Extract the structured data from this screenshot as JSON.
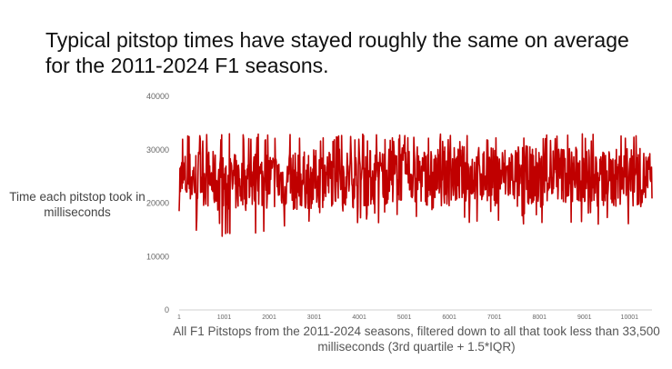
{
  "chart_data": {
    "type": "line",
    "title": "Typical pitstop times have stayed roughly the same on average for the 2011-2024 F1 seasons.",
    "ylabel": "Time each pitstop took in milliseconds",
    "xlabel": "All F1 Pitstops from the 2011-2024 seasons, filtered down to all that took less than 33,500 milliseconds (3rd quartile + 1.5*IQR)",
    "xlim": [
      1,
      10500
    ],
    "ylim": [
      0,
      40000
    ],
    "y_ticks": [
      0,
      10000,
      20000,
      30000,
      40000
    ],
    "y_tick_labels": [
      "0",
      "10000",
      "20000",
      "30000",
      "40000"
    ],
    "x_ticks": [
      1,
      1001,
      2001,
      3001,
      4001,
      5001,
      6001,
      7001,
      8001,
      9001,
      10001
    ],
    "x_tick_labels": [
      "1",
      "1001",
      "2001",
      "3001",
      "4001",
      "5001",
      "6001",
      "7001",
      "8001",
      "9001",
      "10001"
    ],
    "grid": false,
    "legend": "none",
    "series": [
      {
        "color": "#c00000",
        "typical_range": [
          18000,
          33000
        ],
        "values_approx": [
          {
            "x": 1,
            "y": 24000
          },
          {
            "x": 500,
            "y": 25000
          },
          {
            "x": 1000,
            "y": 23500
          },
          {
            "x": 1500,
            "y": 24000
          },
          {
            "x": 2000,
            "y": 24500
          },
          {
            "x": 2500,
            "y": 24000
          },
          {
            "x": 3000,
            "y": 24500
          },
          {
            "x": 3500,
            "y": 25000
          },
          {
            "x": 4000,
            "y": 24500
          },
          {
            "x": 4500,
            "y": 25000
          },
          {
            "x": 5000,
            "y": 25500
          },
          {
            "x": 5500,
            "y": 25000
          },
          {
            "x": 6000,
            "y": 25000
          },
          {
            "x": 6500,
            "y": 25500
          },
          {
            "x": 7000,
            "y": 25000
          },
          {
            "x": 7500,
            "y": 25500
          },
          {
            "x": 8000,
            "y": 25000
          },
          {
            "x": 8500,
            "y": 25500
          },
          {
            "x": 9000,
            "y": 25000
          },
          {
            "x": 9500,
            "y": 24500
          },
          {
            "x": 10000,
            "y": 25000
          },
          {
            "x": 10500,
            "y": 24500
          }
        ]
      }
    ]
  }
}
